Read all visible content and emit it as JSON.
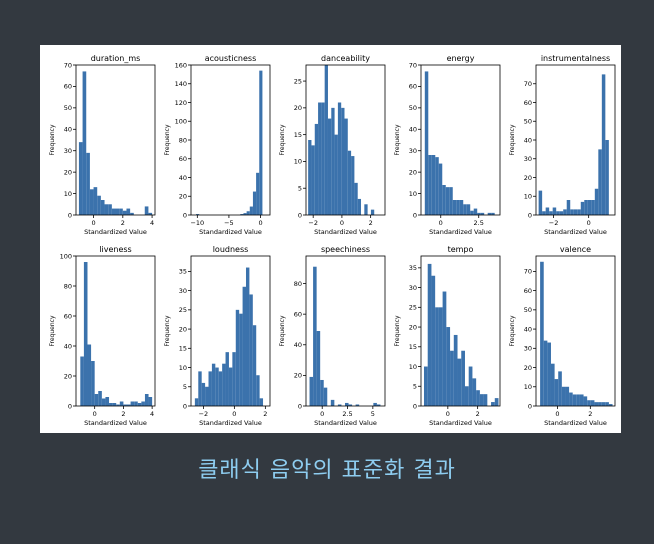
{
  "caption": "클래식 음악의 표준화 결과",
  "colors": {
    "bar": "#3b72ac",
    "page_bg": "#333940",
    "caption": "#8ecdf0"
  },
  "common_xlabel": "Standardized Value",
  "common_ylabel": "Frequency",
  "chart_data": [
    {
      "type": "bar",
      "title": "duration_ms",
      "xlabel": "Standardized Value",
      "ylabel": "Frequency",
      "xlim": [
        -1.2,
        4.2
      ],
      "ylim": [
        0,
        70
      ],
      "xticks": [
        0,
        2,
        4
      ],
      "yticks": [
        0,
        10,
        20,
        30,
        40,
        50,
        60,
        70
      ],
      "bins": {
        "start": -1.0,
        "width": 0.25,
        "counts": [
          34,
          67,
          29,
          12,
          13,
          9,
          7,
          5,
          5,
          3,
          3,
          3,
          2,
          3,
          1,
          0,
          0,
          0,
          4,
          1
        ]
      }
    },
    {
      "type": "bar",
      "title": "acousticness",
      "xlabel": "Standardized Value",
      "ylabel": "Frequency",
      "xlim": [
        -11,
        1.5
      ],
      "ylim": [
        0,
        160
      ],
      "xticks": [
        -10,
        -5,
        0
      ],
      "yticks": [
        0,
        20,
        40,
        60,
        80,
        100,
        120,
        140,
        160
      ],
      "bins": {
        "start": -10.2,
        "width": 0.5,
        "counts": [
          1,
          0,
          0,
          0,
          0,
          0,
          0,
          0,
          0,
          0,
          0,
          0,
          0,
          0,
          1,
          2,
          4,
          9,
          25,
          45,
          154
        ]
      }
    },
    {
      "type": "bar",
      "title": "danceability",
      "xlabel": "Standardized Value",
      "ylabel": "Frequency",
      "xlim": [
        -2.5,
        3
      ],
      "ylim": [
        0,
        28
      ],
      "xticks": [
        -2,
        0,
        2
      ],
      "yticks": [
        0,
        5,
        10,
        15,
        20,
        25
      ],
      "bins": {
        "start": -2.35,
        "width": 0.23,
        "counts": [
          14,
          13,
          17,
          21,
          21,
          28,
          18,
          20,
          15,
          21,
          20,
          18,
          12,
          11,
          6,
          3,
          0,
          2,
          0,
          1
        ]
      }
    },
    {
      "type": "bar",
      "title": "energy",
      "xlabel": "Standardized Value",
      "ylabel": "Frequency",
      "xlim": [
        -1.3,
        3.9
      ],
      "ylim": [
        0,
        70
      ],
      "xticks": [
        0,
        2.5
      ],
      "yticks": [
        0,
        10,
        20,
        30,
        40,
        50,
        60,
        70
      ],
      "bins": {
        "start": -1.05,
        "width": 0.23,
        "counts": [
          67,
          28,
          28,
          27,
          24,
          14,
          13,
          13,
          7,
          7,
          7,
          5,
          5,
          2,
          3,
          1,
          1,
          0,
          1,
          1
        ]
      }
    },
    {
      "type": "bar",
      "title": "instrumentalness",
      "xlabel": "Standardized Value",
      "ylabel": "Frequency",
      "xlim": [
        -3,
        1.5
      ],
      "ylim": [
        0,
        80
      ],
      "xticks": [
        -2,
        0
      ],
      "yticks": [
        0,
        10,
        20,
        30,
        40,
        50,
        60,
        70
      ],
      "bins": {
        "start": -2.85,
        "width": 0.2,
        "counts": [
          13,
          2,
          4,
          2,
          4,
          2,
          2,
          3,
          8,
          3,
          3,
          3,
          7,
          8,
          8,
          8,
          14,
          35,
          75,
          40
        ]
      }
    },
    {
      "type": "bar",
      "title": "liveness",
      "xlabel": "Standardized Value",
      "ylabel": "Frequency",
      "xlim": [
        -1.3,
        4.2
      ],
      "ylim": [
        0,
        100
      ],
      "xticks": [
        0,
        2,
        4
      ],
      "yticks": [
        0,
        20,
        40,
        60,
        80,
        100
      ],
      "bins": {
        "start": -1.0,
        "width": 0.25,
        "counts": [
          33,
          96,
          41,
          30,
          8,
          10,
          5,
          6,
          2,
          2,
          1,
          3,
          1,
          1,
          3,
          3,
          2,
          3,
          8,
          6
        ]
      }
    },
    {
      "type": "bar",
      "title": "loudness",
      "xlabel": "Standardized Value",
      "ylabel": "Frequency",
      "xlim": [
        -2.8,
        2.3
      ],
      "ylim": [
        0,
        39
      ],
      "xticks": [
        -2,
        0,
        2
      ],
      "yticks": [
        0,
        5,
        10,
        15,
        20,
        25,
        30,
        35
      ],
      "bins": {
        "start": -2.55,
        "width": 0.22,
        "counts": [
          2,
          9,
          6,
          5,
          9,
          11,
          10,
          9,
          11,
          14,
          10,
          14,
          25,
          24,
          31,
          36,
          29,
          21,
          8,
          2
        ]
      }
    },
    {
      "type": "bar",
      "title": "speechiness",
      "xlabel": "Standardized Value",
      "ylabel": "Frequency",
      "xlim": [
        -1.6,
        6.2
      ],
      "ylim": [
        0,
        98
      ],
      "xticks": [
        0,
        2.5,
        5
      ],
      "yticks": [
        0,
        20,
        40,
        60,
        80
      ],
      "bins": {
        "start": -1.25,
        "width": 0.35,
        "counts": [
          19,
          91,
          49,
          17,
          12,
          0,
          4,
          0,
          1,
          0,
          2,
          1,
          0,
          1,
          0,
          0,
          0,
          0,
          2,
          1
        ]
      }
    },
    {
      "type": "bar",
      "title": "tempo",
      "xlabel": "Standardized Value",
      "ylabel": "Frequency",
      "xlim": [
        -1.8,
        3.5
      ],
      "ylim": [
        0,
        38
      ],
      "xticks": [
        0,
        2
      ],
      "yticks": [
        0,
        5,
        10,
        15,
        20,
        25,
        30,
        35
      ],
      "bins": {
        "start": -1.6,
        "width": 0.25,
        "counts": [
          10,
          36,
          33,
          25,
          25,
          29,
          20,
          14,
          18,
          12,
          14,
          5,
          10,
          7,
          4,
          3,
          3,
          0,
          1,
          2
        ]
      }
    },
    {
      "type": "bar",
      "title": "valence",
      "xlabel": "Standardized Value",
      "ylabel": "Frequency",
      "xlim": [
        -1.3,
        3.5
      ],
      "ylim": [
        0,
        78
      ],
      "xticks": [
        0,
        2
      ],
      "yticks": [
        0,
        10,
        20,
        30,
        40,
        50,
        60,
        70
      ],
      "bins": {
        "start": -1.05,
        "width": 0.22,
        "counts": [
          75,
          34,
          33,
          22,
          14,
          18,
          10,
          10,
          7,
          6,
          6,
          6,
          5,
          3,
          3,
          2,
          2,
          2,
          2,
          1
        ]
      }
    }
  ]
}
